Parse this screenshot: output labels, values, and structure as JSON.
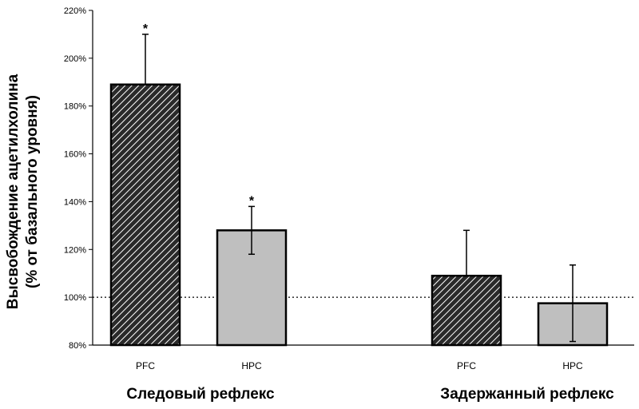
{
  "chart_data": {
    "type": "bar",
    "ylabel_line1": "Высвобождение ацетилхолина",
    "ylabel_line2": "(% от базального уровня)",
    "ylim": [
      80,
      220
    ],
    "yticks": [
      80,
      100,
      120,
      140,
      160,
      180,
      200,
      220
    ],
    "ytick_suffix": "%",
    "baseline": 100,
    "groups": [
      {
        "name": "Следовый рефлекс",
        "bars": [
          {
            "category": "PFC",
            "value": 189,
            "error": 21,
            "pattern": "hatched",
            "significant": true
          },
          {
            "category": "HPC",
            "value": 128,
            "error": 10,
            "pattern": "gray",
            "significant": true
          }
        ]
      },
      {
        "name": "Задержанный рефлекс",
        "bars": [
          {
            "category": "PFC",
            "value": 109,
            "error": 19,
            "pattern": "hatched",
            "significant": false
          },
          {
            "category": "HPC",
            "value": 97.5,
            "error": 16,
            "pattern": "gray",
            "significant": false
          }
        ]
      }
    ],
    "significance_marker": "*",
    "grid": false,
    "legend": "none",
    "colors": {
      "hatched_fill": "#2a2a2a",
      "hatched_stripe": "#ffffff",
      "gray_fill": "#bfbfbf",
      "edge": "#000000"
    }
  }
}
